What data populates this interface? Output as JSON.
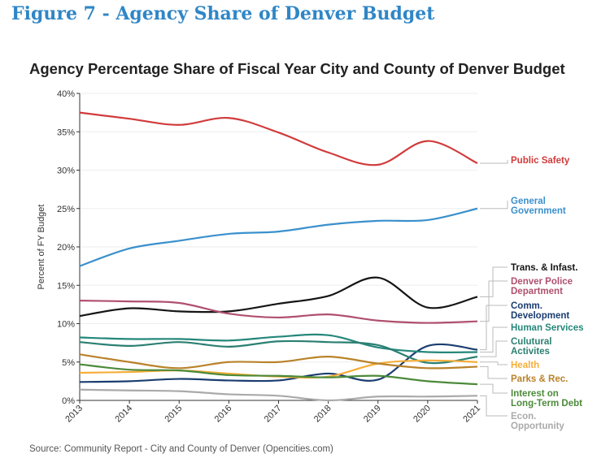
{
  "figure_title": "Figure 7 - Agency Share of Denver Budget",
  "source": "Source: Community Report - City and County of Denver (Opencities.com)",
  "chart_data": {
    "type": "line",
    "title": "Agency Percentage Share of Fiscal Year City and County of Denver Budget",
    "xlabel": "",
    "ylabel": "Percent of FY Budget",
    "ylim": [
      0,
      40
    ],
    "yticks": [
      "0%",
      "5%",
      "10%",
      "15%",
      "20%",
      "25%",
      "30%",
      "35%",
      "40%"
    ],
    "x": [
      "2013",
      "2014",
      "2015",
      "2016",
      "2017",
      "2018",
      "2019",
      "2020",
      "2021"
    ],
    "grid": "horizontal",
    "legend": "right, direct labels",
    "series": [
      {
        "name": "Public Safety",
        "color": "#d13b3b",
        "values": [
          37.5,
          36.7,
          35.9,
          36.8,
          34.9,
          32.3,
          30.7,
          33.8,
          30.9
        ]
      },
      {
        "name": "General Government",
        "color": "#3a90cc",
        "values": [
          17.5,
          19.8,
          20.8,
          21.7,
          22.0,
          22.9,
          23.4,
          23.5,
          25.0
        ]
      },
      {
        "name": "Trans. & Infast.",
        "color": "#151515",
        "values": [
          11.0,
          12.0,
          11.6,
          11.6,
          12.6,
          13.6,
          16.0,
          12.1,
          13.5
        ]
      },
      {
        "name": "Denver Police Department",
        "color": "#b0506e",
        "values": [
          13.0,
          12.9,
          12.7,
          11.3,
          10.8,
          11.2,
          10.4,
          10.1,
          10.3
        ]
      },
      {
        "name": "Comm. Development",
        "color": "#1b3d70",
        "values": [
          2.4,
          2.5,
          2.8,
          2.6,
          2.6,
          3.5,
          2.7,
          7.1,
          6.6
        ]
      },
      {
        "name": "Human Services",
        "color": "#24877a",
        "values": [
          8.2,
          8.0,
          8.0,
          7.8,
          8.3,
          8.5,
          6.9,
          6.3,
          6.3
        ]
      },
      {
        "name": "Culutural Activites",
        "color": "#2b7f72",
        "values": [
          7.6,
          7.1,
          7.6,
          7.0,
          7.7,
          7.6,
          7.2,
          4.9,
          5.7
        ]
      },
      {
        "name": "Health",
        "color": "#f5ae3a",
        "values": [
          3.6,
          3.7,
          3.9,
          3.5,
          3.1,
          3.1,
          4.8,
          5.2,
          5.0
        ]
      },
      {
        "name": "Parks & Rec.",
        "color": "#b9822a",
        "values": [
          6.0,
          5.0,
          4.2,
          5.0,
          5.0,
          5.7,
          4.8,
          4.2,
          4.4
        ]
      },
      {
        "name": "Interest on Long-Term Debt",
        "color": "#4c8a3a",
        "values": [
          4.7,
          4.0,
          3.9,
          3.3,
          3.2,
          3.0,
          3.2,
          2.5,
          2.1
        ]
      },
      {
        "name": "Econ. Opportunity",
        "color": "#aaaaaa",
        "values": [
          1.4,
          1.3,
          1.2,
          0.8,
          0.6,
          0.0,
          0.5,
          0.5,
          0.6
        ]
      }
    ]
  }
}
